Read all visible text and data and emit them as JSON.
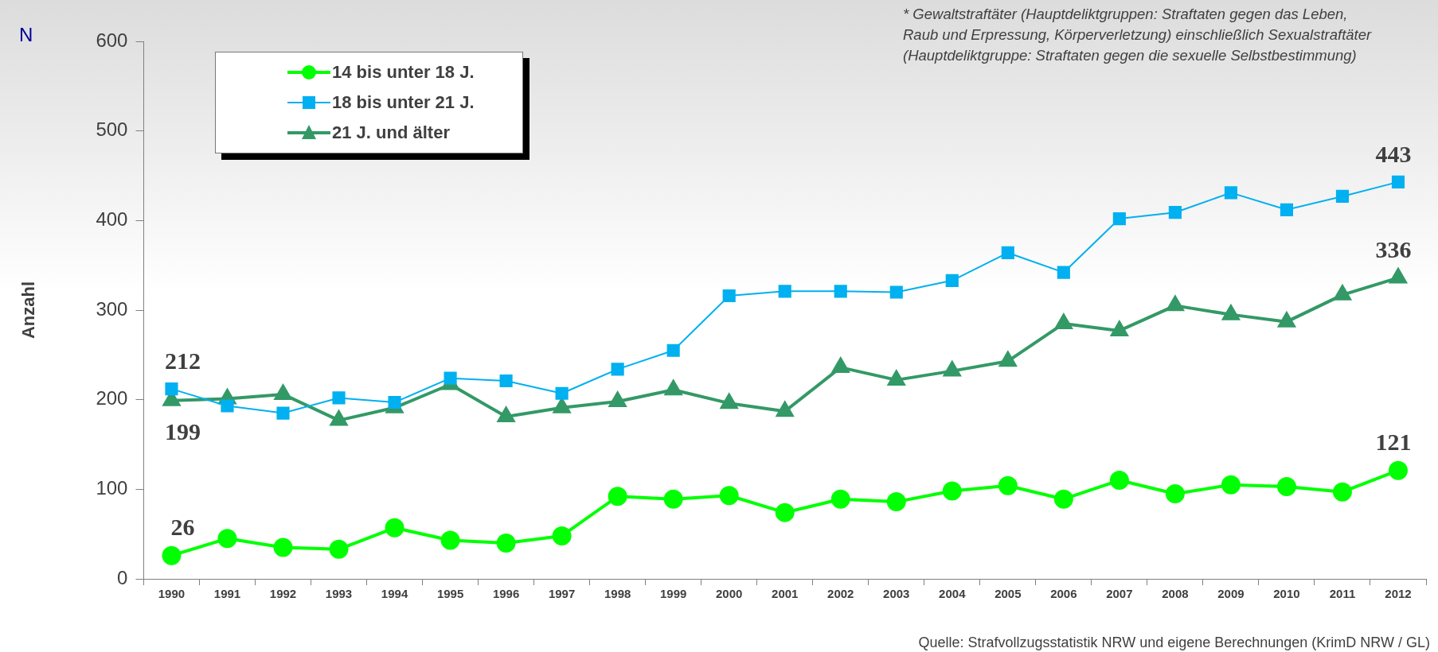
{
  "chart_data": {
    "type": "line",
    "ylabel": "Anzahl",
    "categories": [
      "1990",
      "1991",
      "1992",
      "1993",
      "1994",
      "1995",
      "1996",
      "1997",
      "1998",
      "1999",
      "2000",
      "2001",
      "2002",
      "2003",
      "2004",
      "2005",
      "2006",
      "2007",
      "2008",
      "2009",
      "2010",
      "2011",
      "2012"
    ],
    "series": [
      {
        "name": "14 bis unter 18 J.",
        "color": "#00ff00",
        "marker": "circle",
        "values": [
          26,
          45,
          35,
          33,
          57,
          43,
          40,
          48,
          92,
          89,
          93,
          74,
          89,
          86,
          98,
          104,
          89,
          110,
          95,
          105,
          103,
          97,
          121
        ],
        "value_labels": [
          "26",
          null,
          null,
          null,
          null,
          null,
          null,
          null,
          null,
          null,
          null,
          null,
          null,
          null,
          null,
          null,
          null,
          null,
          null,
          null,
          null,
          null,
          "121"
        ]
      },
      {
        "name": "18 bis unter 21 J.",
        "color": "#00b0f0",
        "marker": "square",
        "values": [
          212,
          193,
          185,
          202,
          197,
          224,
          221,
          207,
          234,
          255,
          316,
          321,
          321,
          320,
          333,
          364,
          342,
          402,
          409,
          431,
          412,
          427,
          443
        ],
        "value_labels": [
          "212",
          null,
          null,
          null,
          null,
          null,
          null,
          null,
          null,
          null,
          null,
          null,
          null,
          null,
          null,
          null,
          null,
          null,
          null,
          null,
          null,
          null,
          "443"
        ]
      },
      {
        "name": "21 J. und älter",
        "color": "#339966",
        "marker": "triangle",
        "values": [
          199,
          201,
          206,
          177,
          191,
          217,
          181,
          191,
          198,
          211,
          196,
          187,
          236,
          222,
          232,
          243,
          285,
          277,
          305,
          295,
          287,
          317,
          336
        ],
        "value_labels": [
          "199",
          null,
          null,
          null,
          null,
          null,
          null,
          null,
          null,
          null,
          null,
          null,
          null,
          null,
          null,
          null,
          null,
          null,
          null,
          null,
          null,
          null,
          "336"
        ]
      }
    ],
    "ylim": [
      0,
      600
    ],
    "yticks": [
      0,
      100,
      200,
      300,
      400,
      500,
      600
    ],
    "grid": false,
    "legend": "top left",
    "line_style": "solid",
    "annotations": [
      "N",
      "* Gewaltstraftäter (Hauptdeliktgruppen: Straftaten gegen das Leben, Raub und Erpressung, Körperverletzung) einschließlich Sexualstraftäter (Hauptdeliktgruppe: Straftaten gegen die sexuelle Selbstbestimmung)",
      "Quelle:  Strafvollzugsstatistik NRW und eigene Berechnungen (KrimD NRW / GL)"
    ]
  }
}
